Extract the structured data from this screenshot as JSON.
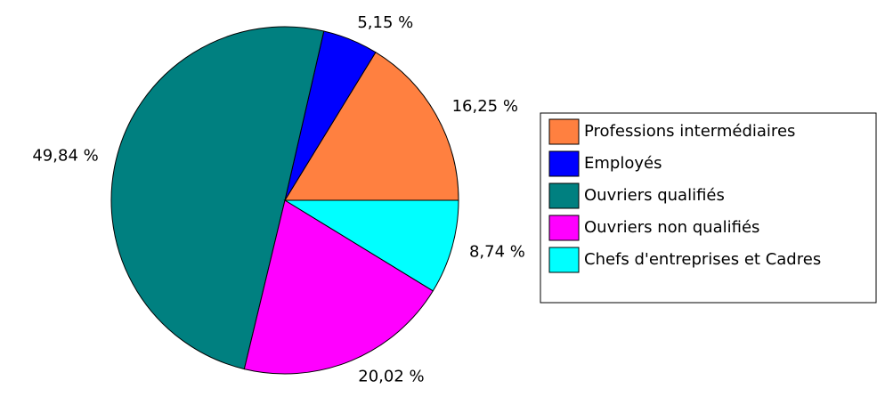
{
  "chart_data": {
    "type": "pie",
    "categories": [
      "Professions intermédiaires",
      "Employés",
      "Ouvriers qualifiés",
      "Ouvriers non qualifiés",
      "Chefs d'entreprises et Cadres"
    ],
    "values": [
      16.25,
      5.15,
      49.84,
      20.02,
      8.74
    ],
    "value_labels": [
      "16,25 %",
      "5,15 %",
      "49,84 %",
      "20,02 %",
      "8,74 %"
    ],
    "colors": [
      "#ff8040",
      "#0000ff",
      "#008080",
      "#ff00ff",
      "#00ffff"
    ],
    "legend": "right"
  }
}
